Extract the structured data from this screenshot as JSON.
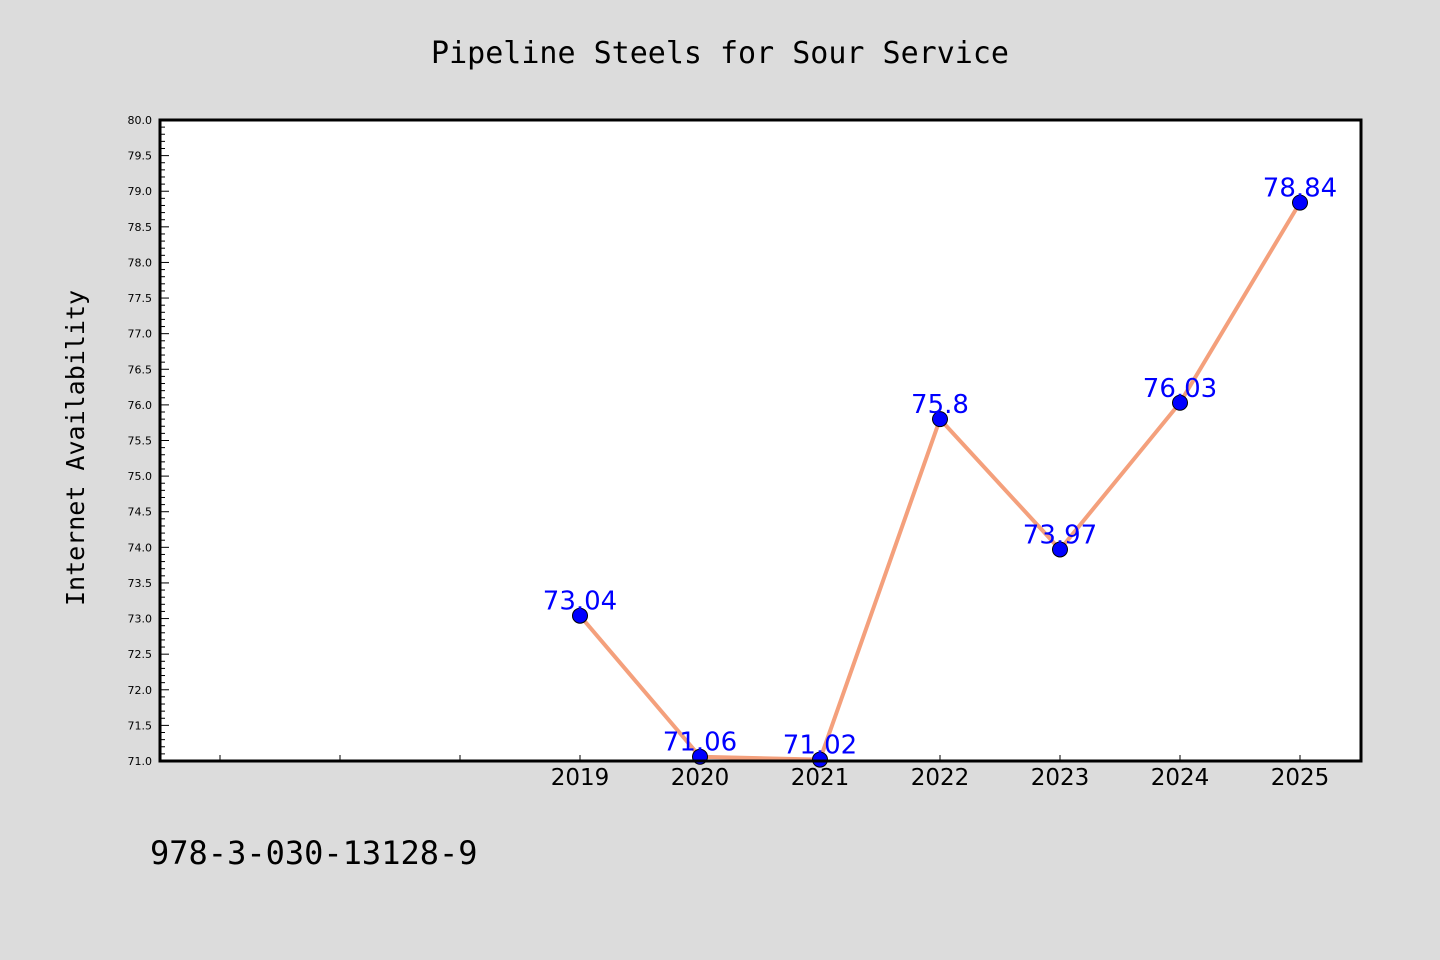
{
  "chart_data": {
    "type": "line",
    "title": "Pipeline Steels for Sour Service",
    "ylabel": "Internet Availability",
    "xlabel": "",
    "categories": [
      "",
      "",
      "",
      "2019",
      "2020",
      "2021",
      "2022",
      "2023",
      "2024",
      "2025"
    ],
    "series": [
      {
        "values": [
          null,
          null,
          null,
          73.04,
          71.06,
          71.02,
          75.8,
          73.97,
          76.03,
          78.84
        ],
        "labels": [
          "",
          "",
          "",
          "73.04",
          "71.06",
          "71.02",
          "75.8",
          "73.97",
          "76.03",
          "78.84"
        ]
      }
    ],
    "ylim": [
      71.0,
      80.0
    ],
    "yticks": [
      "71.0",
      "71.5",
      "72.0",
      "72.5",
      "73.0",
      "73.5",
      "74.0",
      "74.5",
      "75.0",
      "75.5",
      "76.0",
      "76.5",
      "77.0",
      "77.5",
      "78.0",
      "78.5",
      "79.0",
      "79.5",
      "80.0"
    ],
    "grid": false,
    "legend": "none",
    "colors": {
      "line": "#f4a07c",
      "marker": "#0000ff",
      "labels": "#0000ff",
      "figure_bg": "#dcdcdc",
      "plot_bg": "#ffffff"
    }
  },
  "footnote": "978-3-030-13128-9"
}
